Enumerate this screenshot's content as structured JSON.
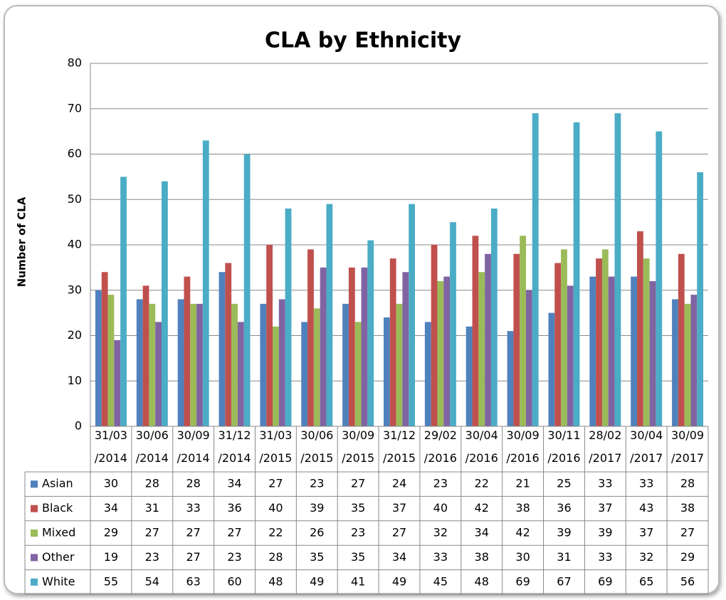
{
  "chart_data": {
    "type": "bar",
    "title": "CLA by Ethnicity",
    "y_label": "Number of CLA",
    "categories": [
      "31/03/2014",
      "30/06/2014",
      "30/09/2014",
      "31/12/2014",
      "31/03/2015",
      "30/06/2015",
      "30/09/2015",
      "31/12/2015",
      "29/02/2016",
      "30/04/2016",
      "30/09/2016",
      "30/11/2016",
      "28/02/2017",
      "30/04/2017",
      "30/09/2017"
    ],
    "series": [
      {
        "name": "Asian",
        "color": "#4f81bd",
        "values": [
          30,
          28,
          28,
          34,
          27,
          23,
          27,
          24,
          23,
          22,
          21,
          25,
          33,
          33,
          28
        ]
      },
      {
        "name": "Black",
        "color": "#c0504d",
        "values": [
          34,
          31,
          33,
          36,
          40,
          39,
          35,
          37,
          40,
          42,
          38,
          36,
          37,
          43,
          38
        ]
      },
      {
        "name": "Mixed",
        "color": "#9bbb59",
        "values": [
          29,
          27,
          27,
          27,
          22,
          26,
          23,
          27,
          32,
          34,
          42,
          39,
          39,
          37,
          27
        ]
      },
      {
        "name": "Other",
        "color": "#8064a2",
        "values": [
          19,
          23,
          27,
          23,
          28,
          35,
          35,
          34,
          33,
          38,
          30,
          31,
          33,
          32,
          29
        ]
      },
      {
        "name": "White",
        "color": "#4bacc6",
        "values": [
          55,
          54,
          63,
          60,
          48,
          49,
          41,
          49,
          45,
          48,
          69,
          67,
          69,
          65,
          56
        ]
      }
    ],
    "ylim": [
      0,
      80
    ],
    "yticks": [
      0,
      10,
      20,
      30,
      40,
      50,
      60,
      70,
      80
    ],
    "grid": true,
    "data_table": true
  }
}
